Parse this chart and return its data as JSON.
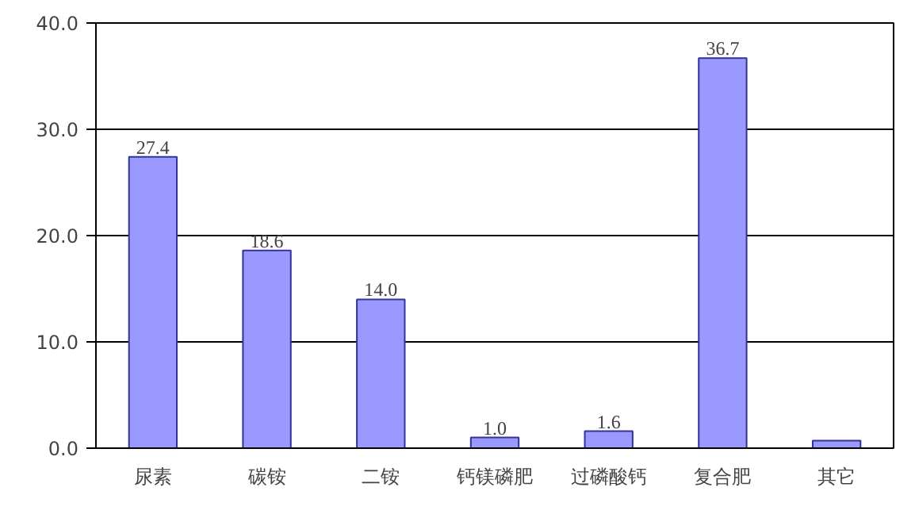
{
  "chart_data": {
    "type": "bar",
    "categories": [
      "尿素",
      "碳铵",
      "二铵",
      "钙镁磷肥",
      "过磷酸钙",
      "复合肥",
      "其它"
    ],
    "values": [
      27.4,
      18.6,
      14.0,
      1.0,
      1.6,
      36.7,
      0.7
    ],
    "value_labels": [
      "27.4",
      "18.6",
      "14.0",
      "1.0",
      "1.6",
      "36.7",
      null
    ],
    "color": "#9999ff",
    "ylim": [
      0,
      40
    ],
    "yticks": [
      {
        "value": 0,
        "label": "0.0"
      },
      {
        "value": 10,
        "label": "10.0"
      },
      {
        "value": 20,
        "label": "20.0"
      },
      {
        "value": 30,
        "label": "30.0"
      },
      {
        "value": 40,
        "label": "40.0"
      }
    ],
    "grid": "y"
  }
}
